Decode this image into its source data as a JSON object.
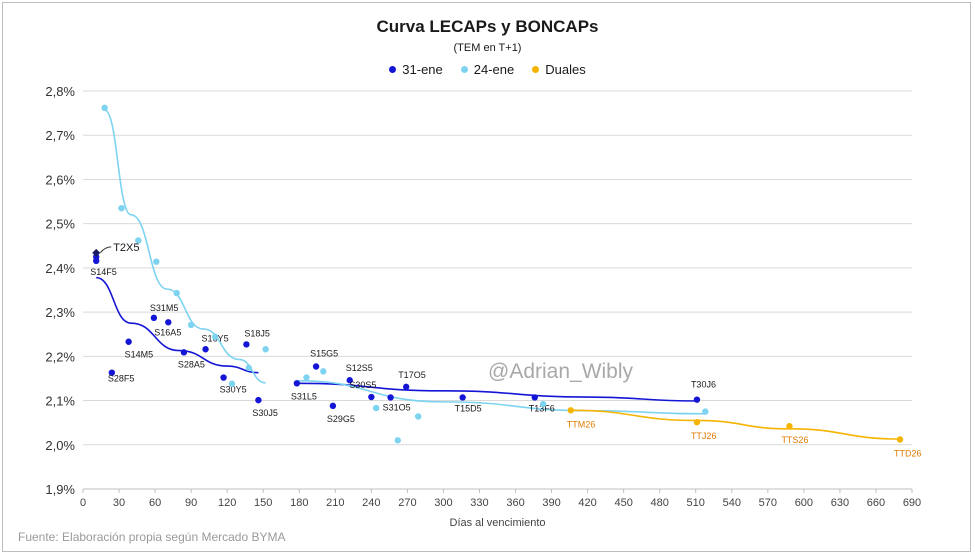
{
  "title": "Curva LECAPs y BONCAPs",
  "subtitle": "(TEM en T+1)",
  "source": "Fuente: Elaboración propia según Mercado BYMA",
  "watermark": "@Adrian_Wibly",
  "legend": [
    {
      "label": "31-ene",
      "color": "#1515d6"
    },
    {
      "label": "24-ene",
      "color": "#7dd3f0"
    },
    {
      "label": "Duales",
      "color": "#f5b400"
    }
  ],
  "chart_data": {
    "type": "scatter",
    "title": "Curva LECAPs y BONCAPs",
    "subtitle": "(TEM en T+1)",
    "xlabel": "Días al vencimiento",
    "ylabel": "",
    "xlim": [
      0,
      690
    ],
    "ylim": [
      1.9,
      2.8
    ],
    "x_ticks": [
      "0",
      "30",
      "60",
      "90",
      "120",
      "150",
      "180",
      "210",
      "240",
      "270",
      "300",
      "330",
      "360",
      "390",
      "420",
      "450",
      "480",
      "510",
      "540",
      "570",
      "600",
      "630",
      "660",
      "690"
    ],
    "y_ticks": [
      "1,9%",
      "2,0%",
      "2,1%",
      "2,2%",
      "2,3%",
      "2,4%",
      "2,5%",
      "2,6%",
      "2,7%",
      "2,8%"
    ],
    "grid": true,
    "legend_position": "top",
    "series": [
      {
        "name": "31-ene",
        "color": "#1515d6",
        "points": [
          {
            "x": 11,
            "y": 2.425,
            "label": ""
          },
          {
            "x": 11,
            "y": 2.416,
            "label": "S14F5"
          },
          {
            "x": 24,
            "y": 2.163,
            "label": "S28F5"
          },
          {
            "x": 38,
            "y": 2.233,
            "label": "S14M5"
          },
          {
            "x": 59,
            "y": 2.287,
            "label": "S31M5"
          },
          {
            "x": 71,
            "y": 2.277,
            "label": "S16A5"
          },
          {
            "x": 84,
            "y": 2.209,
            "label": "S28A5"
          },
          {
            "x": 102,
            "y": 2.216,
            "label": "S16Y5"
          },
          {
            "x": 117,
            "y": 2.152,
            "label": "S30Y5"
          },
          {
            "x": 136,
            "y": 2.227,
            "label": "S18J5"
          },
          {
            "x": 146,
            "y": 2.101,
            "label": "S30J5"
          },
          {
            "x": 178,
            "y": 2.139,
            "label": "S31L5"
          },
          {
            "x": 194,
            "y": 2.177,
            "label": "S15G5"
          },
          {
            "x": 208,
            "y": 2.088,
            "label": "S29G5"
          },
          {
            "x": 222,
            "y": 2.146,
            "label": "S12S5"
          },
          {
            "x": 240,
            "y": 2.108,
            "label": "S30S5"
          },
          {
            "x": 256,
            "y": 2.107,
            "label": "S31O5"
          },
          {
            "x": 269,
            "y": 2.131,
            "label": "T17O5"
          },
          {
            "x": 316,
            "y": 2.107,
            "label": "T15D5"
          },
          {
            "x": 376,
            "y": 2.107,
            "label": "T13F6"
          },
          {
            "x": 511,
            "y": 2.102,
            "label": "T30J6"
          }
        ],
        "trend_segments": [
          {
            "x": [
              11,
              40,
              80,
              120,
              146
            ],
            "y": [
              2.378,
              2.275,
              2.213,
              2.178,
              2.163
            ]
          },
          {
            "x": [
              178,
              300,
              420,
              511
            ],
            "y": [
              2.139,
              2.122,
              2.108,
              2.099
            ]
          }
        ]
      },
      {
        "name": "24-ene",
        "color": "#7dd3f0",
        "points": [
          {
            "x": 18,
            "y": 2.762
          },
          {
            "x": 32,
            "y": 2.535
          },
          {
            "x": 46,
            "y": 2.462
          },
          {
            "x": 61,
            "y": 2.414
          },
          {
            "x": 78,
            "y": 2.343
          },
          {
            "x": 90,
            "y": 2.271
          },
          {
            "x": 110,
            "y": 2.244
          },
          {
            "x": 124,
            "y": 2.138
          },
          {
            "x": 138,
            "y": 2.174
          },
          {
            "x": 152,
            "y": 2.216
          },
          {
            "x": 186,
            "y": 2.152
          },
          {
            "x": 200,
            "y": 2.166
          },
          {
            "x": 244,
            "y": 2.083
          },
          {
            "x": 262,
            "y": 2.01
          },
          {
            "x": 279,
            "y": 2.064
          },
          {
            "x": 383,
            "y": 2.092
          },
          {
            "x": 518,
            "y": 2.075
          }
        ],
        "trend_segments": [
          {
            "x": [
              18,
              40,
              70,
              100,
              130,
              152
            ],
            "y": [
              2.757,
              2.52,
              2.352,
              2.262,
              2.193,
              2.14
            ]
          },
          {
            "x": [
              178,
              300,
              420,
              518
            ],
            "y": [
              2.145,
              2.097,
              2.077,
              2.07
            ]
          }
        ]
      },
      {
        "name": "Duales",
        "color": "#f5b400",
        "label_color": "#e07b00",
        "points": [
          {
            "x": 406,
            "y": 2.078,
            "label": "TTM26"
          },
          {
            "x": 511,
            "y": 2.051,
            "label": "TTJ26"
          },
          {
            "x": 588,
            "y": 2.042,
            "label": "TTS26"
          },
          {
            "x": 680,
            "y": 2.012,
            "label": "TTD26"
          }
        ],
        "trend_segments": [
          {
            "x": [
              406,
              511,
              588,
              680
            ],
            "y": [
              2.078,
              2.055,
              2.036,
              2.013
            ]
          }
        ]
      }
    ],
    "callout": {
      "label": "T2X5",
      "x": 11,
      "y": 2.434,
      "color": "#1a1a60"
    }
  }
}
